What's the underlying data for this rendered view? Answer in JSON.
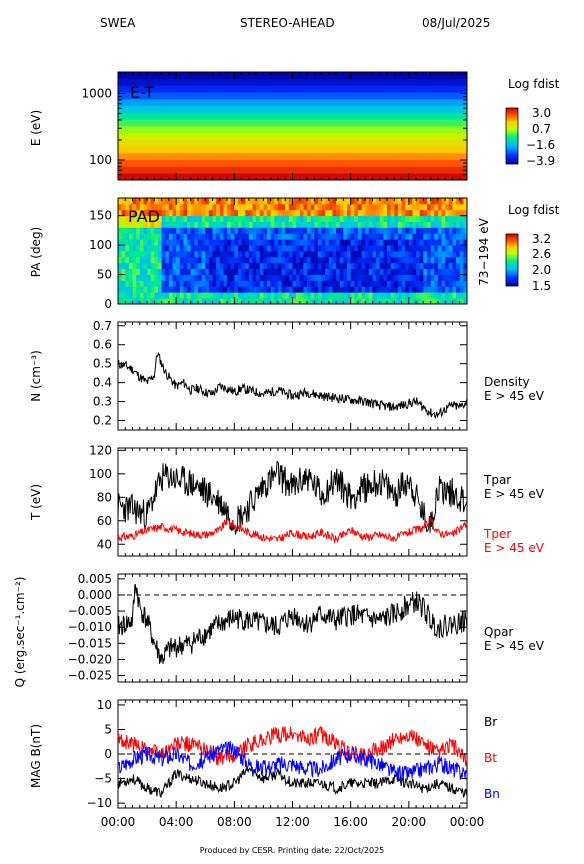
{
  "header": {
    "instrument": "SWEA",
    "spacecraft": "STEREO-AHEAD",
    "date": "08/Jul/2025"
  },
  "footer": "Produced by CESR.   Printing date: 22/Oct/2025",
  "colors": {
    "black": "#000000",
    "red": "#ff0000",
    "blue": "#0000ff"
  },
  "chart_data": [
    {
      "type": "heatmap",
      "panel": "E-T",
      "annotation": "E-T",
      "ylabel": "E (eV)",
      "y_scale": "log",
      "ylim": [
        50,
        2100
      ],
      "yticks": [
        {
          "v": 100,
          "label": "100"
        },
        {
          "v": 1000,
          "label": "1000"
        }
      ],
      "colorbar": {
        "title": "Log fdist",
        "ticks": [
          "3.0",
          "0.7",
          "−1.6",
          "−3.9"
        ],
        "min": -3.9,
        "max": 3.0
      },
      "bands_low_to_high_energy": [
        2.9,
        2.5,
        2.1,
        1.7,
        1.3,
        0.9,
        0.6,
        0.2,
        -0.3,
        -0.8,
        -1.4,
        -1.9,
        -2.5,
        -3.0,
        -3.5,
        -3.8
      ]
    },
    {
      "type": "heatmap",
      "panel": "PAD",
      "annotation": "PAD",
      "ylabel": "PA (deg)",
      "ylim": [
        0,
        180
      ],
      "yticks": [
        "0",
        "50",
        "100",
        "150"
      ],
      "right_label": "73−194 eV",
      "colorbar": {
        "title": "Log fdist",
        "ticks": [
          "3.2",
          "2.6",
          "2.0",
          "1.5"
        ],
        "min": 1.5,
        "max": 3.2
      }
    },
    {
      "type": "line",
      "panel": "density",
      "ylabel": "N (cm⁻³)",
      "ylim": [
        0.15,
        0.72
      ],
      "yticks": [
        "0.2",
        "0.3",
        "0.4",
        "0.5",
        "0.6",
        "0.7"
      ],
      "series": [
        {
          "name": "Density",
          "sub": "E > 45 eV",
          "color": "#000000",
          "x": [
            0,
            0.5,
            1,
            1.5,
            2,
            2.5,
            2.7,
            3,
            3.3,
            3.6,
            4,
            4.5,
            5,
            5.5,
            6,
            6.5,
            7,
            7.5,
            8,
            8.5,
            9,
            10,
            11,
            12,
            13,
            14,
            15,
            16,
            17,
            18,
            19,
            19.5,
            20,
            20.5,
            21,
            21.5,
            22,
            22.5,
            23,
            23.5,
            24
          ],
          "y": [
            0.5,
            0.49,
            0.47,
            0.43,
            0.4,
            0.44,
            0.56,
            0.5,
            0.45,
            0.42,
            0.38,
            0.4,
            0.36,
            0.37,
            0.35,
            0.34,
            0.38,
            0.37,
            0.35,
            0.37,
            0.36,
            0.34,
            0.36,
            0.33,
            0.35,
            0.33,
            0.32,
            0.31,
            0.3,
            0.28,
            0.27,
            0.28,
            0.29,
            0.3,
            0.27,
            0.24,
            0.23,
            0.26,
            0.28,
            0.27,
            0.3
          ]
        }
      ]
    },
    {
      "type": "line",
      "panel": "temperature",
      "ylabel": "T (eV)",
      "ylim": [
        30,
        122
      ],
      "yticks": [
        "40",
        "60",
        "80",
        "100",
        "120"
      ],
      "series": [
        {
          "name": "Tpar",
          "sub": "E > 45 eV",
          "color": "#000000",
          "x": [
            0,
            1,
            2,
            2.5,
            3,
            3.5,
            4,
            5,
            6,
            7,
            7.5,
            8,
            9,
            10,
            11,
            12,
            13,
            14,
            15,
            16,
            17,
            18,
            19,
            20,
            20.5,
            21,
            21.5,
            22,
            23,
            24
          ],
          "y": [
            72,
            70,
            65,
            82,
            96,
            98,
            95,
            92,
            85,
            76,
            68,
            60,
            72,
            90,
            100,
            88,
            98,
            82,
            96,
            80,
            88,
            94,
            82,
            96,
            80,
            64,
            56,
            88,
            84,
            76
          ]
        },
        {
          "name": "Tper",
          "sub": "E > 45 eV",
          "color": "#ff0000",
          "x": [
            0,
            1,
            2,
            3,
            4,
            5,
            6,
            7,
            7.5,
            8,
            9,
            10,
            11,
            12,
            13,
            14,
            15,
            16,
            17,
            18,
            19,
            20,
            21,
            21.5,
            22,
            23,
            24
          ],
          "y": [
            46,
            47,
            52,
            55,
            52,
            49,
            48,
            52,
            60,
            56,
            50,
            46,
            44,
            50,
            46,
            50,
            44,
            52,
            46,
            48,
            45,
            50,
            54,
            60,
            50,
            48,
            58
          ]
        }
      ]
    },
    {
      "type": "line",
      "panel": "heat-flux",
      "ylabel": "Q (erg.sec⁻¹.cm⁻²)",
      "ylim": [
        -0.027,
        0.0065
      ],
      "yticks": [
        "−0.025",
        "−0.020",
        "−0.015",
        "−0.010",
        "−0.005",
        "0.000",
        "0.005"
      ],
      "zero_line": 0.0,
      "series": [
        {
          "name": "Qpar",
          "sub": "E > 45 eV",
          "color": "#000000",
          "x": [
            0,
            0.5,
            1,
            1.2,
            1.5,
            2,
            2.5,
            3,
            3.5,
            4,
            5,
            6,
            7,
            8,
            9,
            10,
            11,
            12,
            13,
            14,
            15,
            16,
            17,
            18,
            19,
            20,
            20.5,
            21,
            21.5,
            22,
            23,
            24
          ],
          "y": [
            -0.01,
            -0.009,
            -0.008,
            0.004,
            -0.004,
            -0.008,
            -0.015,
            -0.02,
            -0.017,
            -0.016,
            -0.015,
            -0.012,
            -0.009,
            -0.007,
            -0.008,
            -0.009,
            -0.01,
            -0.006,
            -0.009,
            -0.006,
            -0.008,
            -0.006,
            -0.007,
            -0.008,
            -0.006,
            -0.003,
            -0.002,
            -0.004,
            -0.008,
            -0.01,
            -0.009,
            -0.008
          ]
        }
      ]
    },
    {
      "type": "line",
      "panel": "mag",
      "ylabel": "MAG B(nT)",
      "ylim": [
        -11,
        11
      ],
      "yticks": [
        "−10",
        "−5",
        "0",
        "5",
        "10"
      ],
      "zero_line": 0,
      "xlabel": "",
      "x_range_hours": [
        0,
        24
      ],
      "xticks": [
        "00:00",
        "04:00",
        "08:00",
        "12:00",
        "16:00",
        "20:00",
        "00:00"
      ],
      "series": [
        {
          "name": "Br",
          "color": "#000000",
          "x": [
            0,
            1,
            2,
            3,
            4,
            5,
            6,
            7,
            8,
            9,
            10,
            11,
            12,
            13,
            14,
            15,
            16,
            17,
            18,
            19,
            20,
            21,
            22,
            23,
            24
          ],
          "y": [
            -6,
            -5,
            -7,
            -8,
            -4,
            -5,
            -6,
            -7,
            -6,
            -3,
            -5,
            -4,
            -6,
            -6,
            -6,
            -7,
            -6,
            -6,
            -6,
            -5,
            -6,
            -7,
            -6,
            -7,
            -8
          ]
        },
        {
          "name": "Bt",
          "color": "#ff0000",
          "x": [
            0,
            1,
            2,
            3,
            4,
            5,
            6,
            7,
            8,
            9,
            10,
            11,
            12,
            13,
            14,
            15,
            16,
            17,
            18,
            19,
            20,
            21,
            22,
            23,
            24
          ],
          "y": [
            3,
            2,
            1,
            0,
            2,
            2,
            1,
            -1,
            0,
            2,
            3,
            4,
            4,
            3,
            4,
            2,
            0,
            0,
            1,
            3,
            4,
            2,
            0,
            2,
            -2
          ]
        },
        {
          "name": "Bn",
          "color": "#0000ff",
          "x": [
            0,
            1,
            2,
            3,
            4,
            5,
            6,
            7,
            8,
            9,
            10,
            11,
            12,
            13,
            14,
            15,
            16,
            17,
            18,
            19,
            20,
            21,
            22,
            23,
            24
          ],
          "y": [
            -3,
            -1,
            0,
            -1,
            0,
            -2,
            -1,
            1,
            1,
            -2,
            -3,
            -2,
            -2,
            -3,
            -3,
            -1,
            0,
            -1,
            -2,
            -4,
            -4,
            -3,
            -2,
            -3,
            -4
          ]
        }
      ]
    }
  ]
}
